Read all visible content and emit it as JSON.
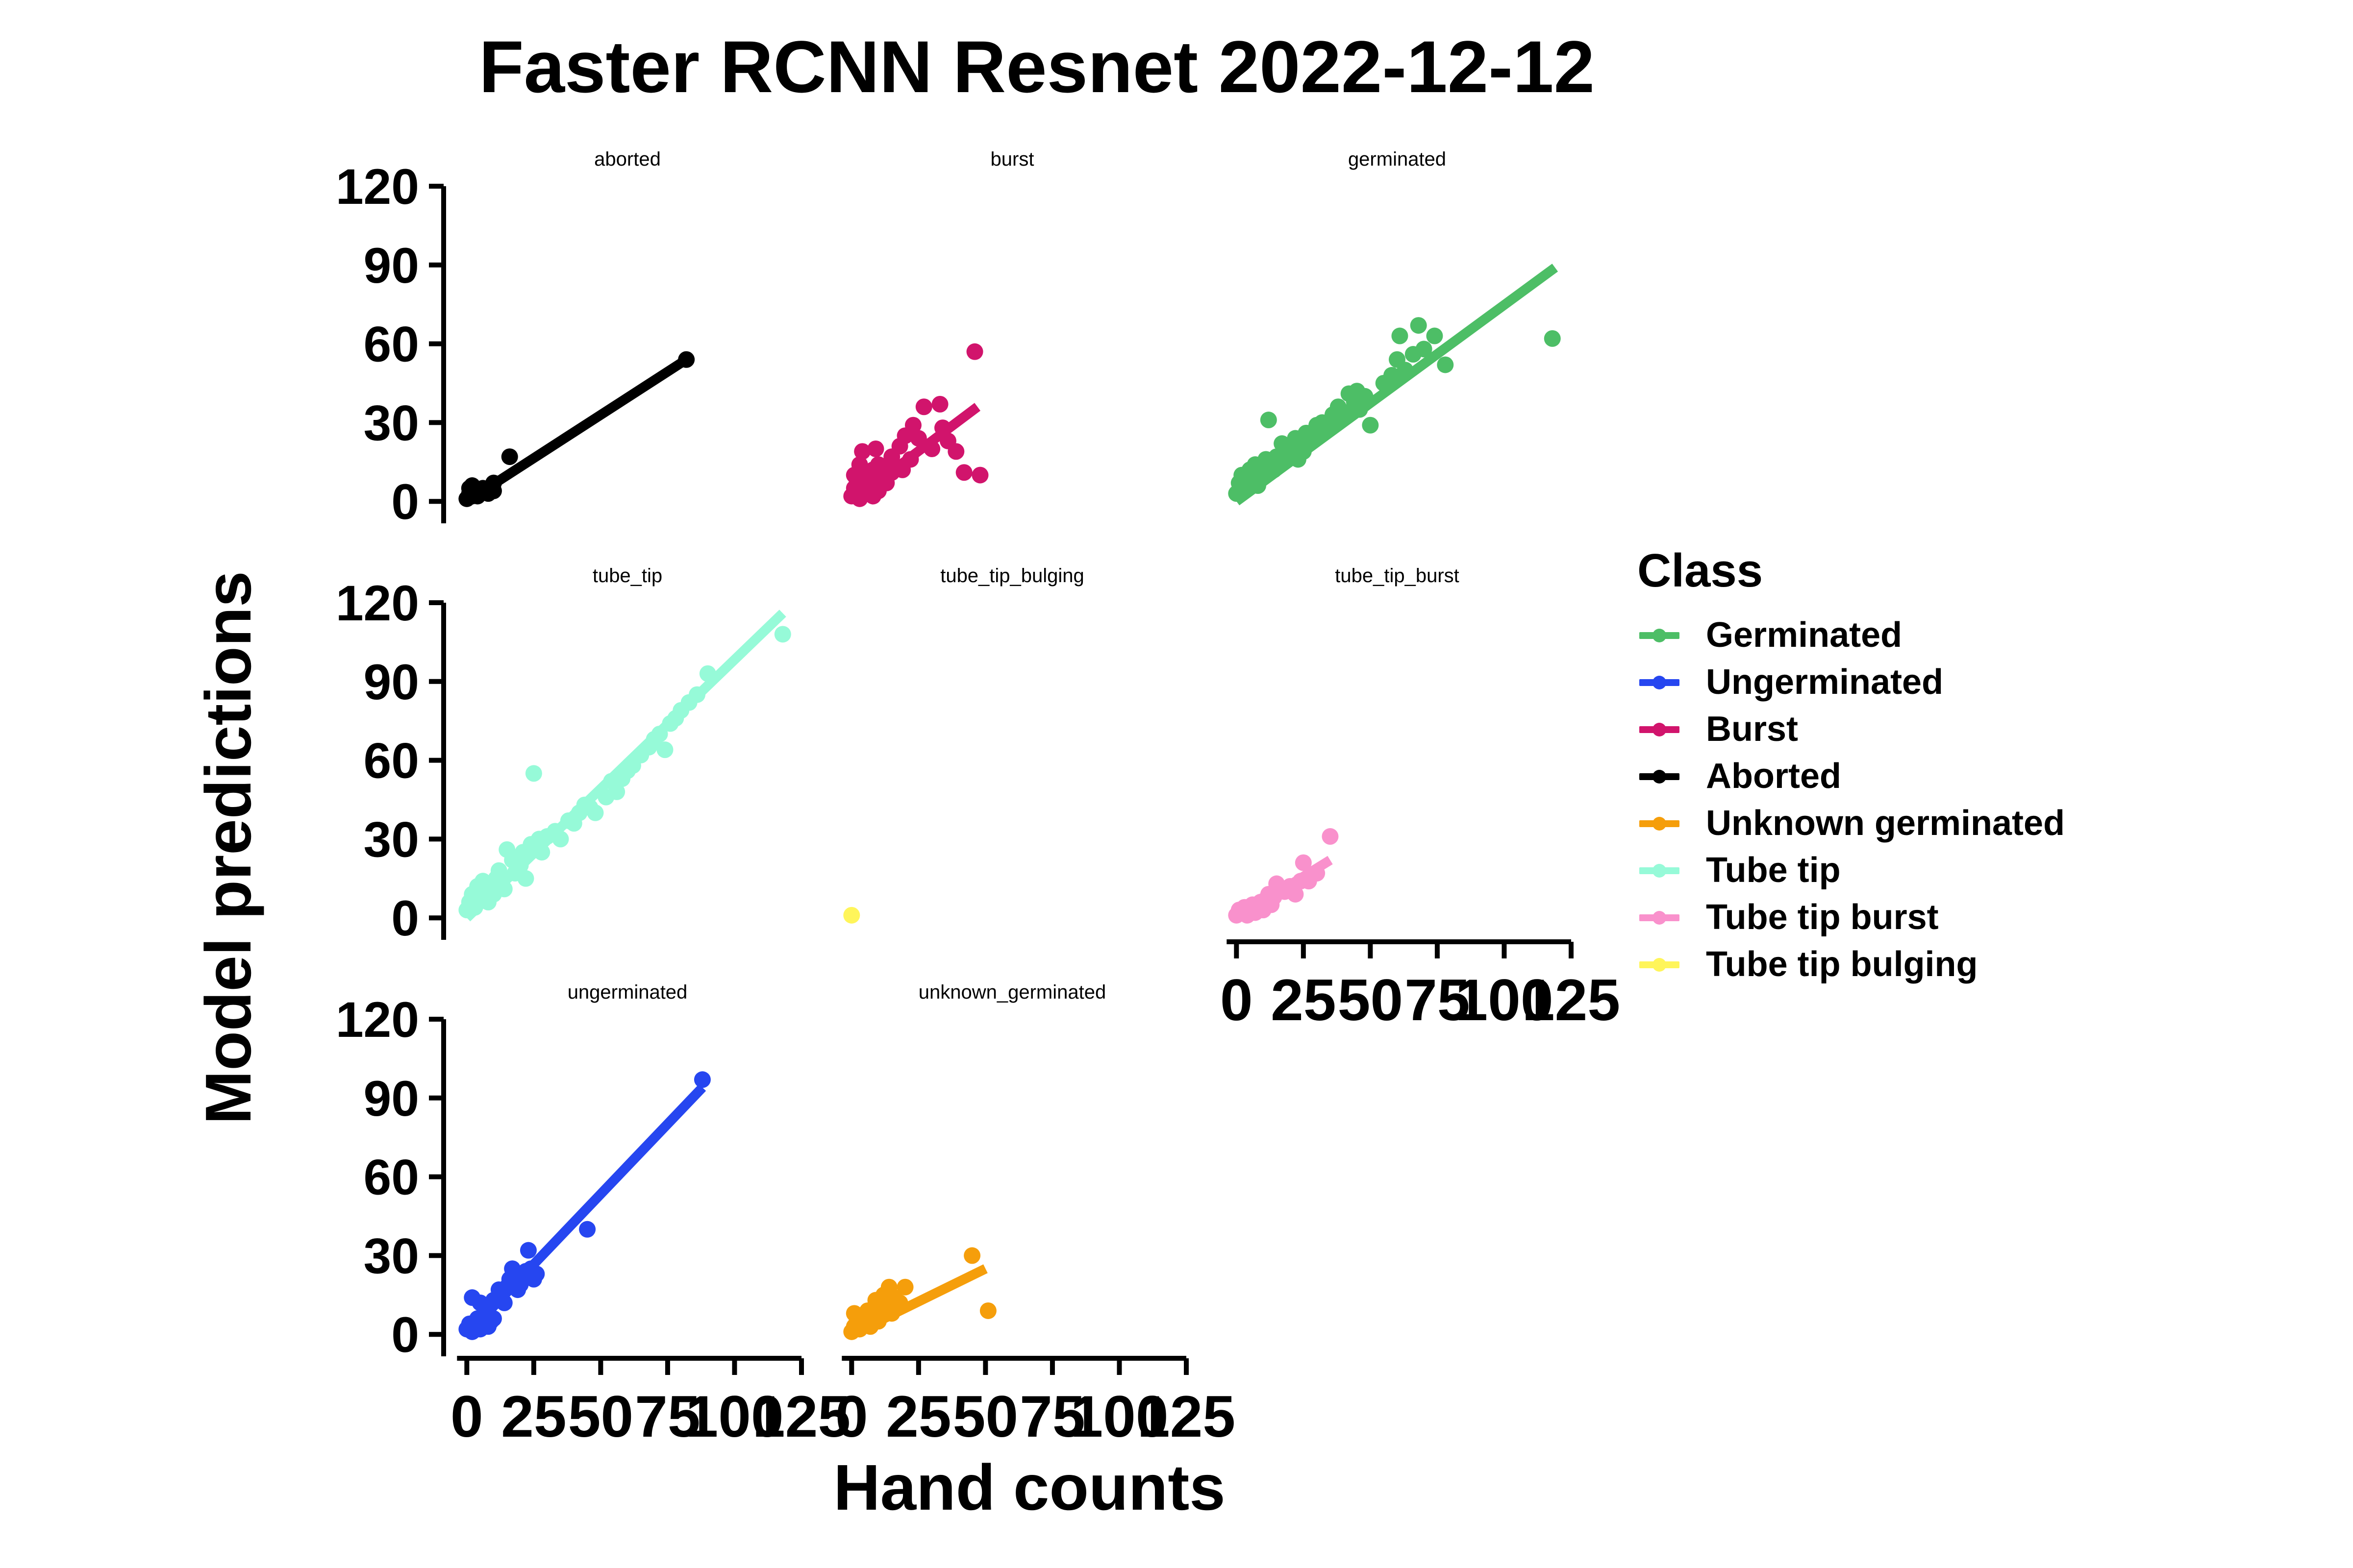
{
  "chart_data": {
    "type": "scatter",
    "title": "Faster RCNN Resnet 2022-12-12",
    "xlabel": "Hand counts",
    "ylabel": "Model predictions",
    "xlim": [
      -5,
      125
    ],
    "ylim": [
      -5,
      120
    ],
    "x_ticks": [
      "0",
      "25",
      "50",
      "75",
      "100",
      "125"
    ],
    "y_ticks": [
      "0",
      "30",
      "60",
      "90",
      "120"
    ],
    "grid": false,
    "legend": {
      "title": "Class",
      "position": "right",
      "items": [
        {
          "label": "Germinated",
          "color": "#4DBE66"
        },
        {
          "label": "Ungerminated",
          "color": "#2646F0"
        },
        {
          "label": "Burst",
          "color": "#D1146C"
        },
        {
          "label": "Aborted",
          "color": "#000000"
        },
        {
          "label": "Unknown germinated",
          "color": "#F59E0B"
        },
        {
          "label": "Tube tip",
          "color": "#96FAD8"
        },
        {
          "label": "Tube tip burst",
          "color": "#F991CC"
        },
        {
          "label": "Tube tip bulging",
          "color": "#FFF55A"
        }
      ]
    },
    "panels": [
      {
        "name": "aborted",
        "color": "#000000",
        "fit": [
          [
            0,
            0
          ],
          [
            82,
            54
          ]
        ],
        "points": [
          [
            0,
            1
          ],
          [
            1,
            3
          ],
          [
            2,
            2
          ],
          [
            1,
            5
          ],
          [
            3,
            4
          ],
          [
            2,
            6
          ],
          [
            4,
            2
          ],
          [
            5,
            3
          ],
          [
            6,
            5
          ],
          [
            8,
            3
          ],
          [
            10,
            4
          ],
          [
            10,
            7
          ],
          [
            16,
            17
          ],
          [
            82,
            54
          ]
        ]
      },
      {
        "name": "burst",
        "color": "#D1146C",
        "fit": [
          [
            0,
            0
          ],
          [
            47,
            36
          ]
        ],
        "points": [
          [
            0,
            2
          ],
          [
            1,
            5
          ],
          [
            1,
            10
          ],
          [
            2,
            8
          ],
          [
            2,
            3
          ],
          [
            3,
            1
          ],
          [
            3,
            14
          ],
          [
            4,
            6
          ],
          [
            4,
            19
          ],
          [
            5,
            3
          ],
          [
            5,
            11
          ],
          [
            6,
            8
          ],
          [
            7,
            6
          ],
          [
            8,
            12
          ],
          [
            8,
            2
          ],
          [
            9,
            20
          ],
          [
            10,
            14
          ],
          [
            10,
            4
          ],
          [
            11,
            10
          ],
          [
            12,
            9
          ],
          [
            13,
            7
          ],
          [
            14,
            14
          ],
          [
            15,
            17
          ],
          [
            15,
            11
          ],
          [
            16,
            13
          ],
          [
            18,
            21
          ],
          [
            19,
            12
          ],
          [
            20,
            25
          ],
          [
            22,
            16
          ],
          [
            23,
            29
          ],
          [
            25,
            24
          ],
          [
            27,
            36
          ],
          [
            30,
            20
          ],
          [
            33,
            37
          ],
          [
            34,
            28
          ],
          [
            36,
            23
          ],
          [
            39,
            19
          ],
          [
            42,
            11
          ],
          [
            46,
            57
          ],
          [
            48,
            10
          ]
        ]
      },
      {
        "name": "germinated",
        "color": "#4DBE66",
        "fit": [
          [
            0,
            0
          ],
          [
            119,
            89
          ]
        ],
        "points": [
          [
            0,
            3
          ],
          [
            1,
            7
          ],
          [
            2,
            10
          ],
          [
            3,
            5
          ],
          [
            4,
            9
          ],
          [
            5,
            12
          ],
          [
            6,
            8
          ],
          [
            7,
            14
          ],
          [
            8,
            6
          ],
          [
            9,
            10
          ],
          [
            10,
            11
          ],
          [
            11,
            16
          ],
          [
            12,
            31
          ],
          [
            13,
            14
          ],
          [
            14,
            12
          ],
          [
            15,
            17
          ],
          [
            17,
            22
          ],
          [
            18,
            17
          ],
          [
            20,
            20
          ],
          [
            22,
            24
          ],
          [
            23,
            16
          ],
          [
            25,
            19
          ],
          [
            26,
            26
          ],
          [
            27,
            22
          ],
          [
            30,
            29
          ],
          [
            31,
            26
          ],
          [
            32,
            30
          ],
          [
            34,
            28
          ],
          [
            36,
            33
          ],
          [
            37,
            30
          ],
          [
            38,
            36
          ],
          [
            40,
            34
          ],
          [
            42,
            41
          ],
          [
            44,
            38
          ],
          [
            45,
            42
          ],
          [
            46,
            35
          ],
          [
            48,
            40
          ],
          [
            50,
            29
          ],
          [
            55,
            45
          ],
          [
            58,
            48
          ],
          [
            60,
            54
          ],
          [
            61,
            63
          ],
          [
            63,
            50
          ],
          [
            66,
            56
          ],
          [
            68,
            67
          ],
          [
            70,
            58
          ],
          [
            74,
            63
          ],
          [
            78,
            52
          ],
          [
            118,
            62
          ]
        ]
      },
      {
        "name": "tube_tip",
        "color": "#96FAD8",
        "fit": [
          [
            0,
            0
          ],
          [
            118,
            116
          ]
        ],
        "points": [
          [
            0,
            3
          ],
          [
            1,
            6
          ],
          [
            2,
            9
          ],
          [
            3,
            4
          ],
          [
            4,
            12
          ],
          [
            5,
            8
          ],
          [
            6,
            14
          ],
          [
            7,
            10
          ],
          [
            8,
            6
          ],
          [
            9,
            12
          ],
          [
            10,
            9
          ],
          [
            11,
            15
          ],
          [
            12,
            18
          ],
          [
            13,
            14
          ],
          [
            14,
            11
          ],
          [
            15,
            26
          ],
          [
            17,
            22
          ],
          [
            18,
            17
          ],
          [
            20,
            20
          ],
          [
            21,
            25
          ],
          [
            22,
            15
          ],
          [
            24,
            28
          ],
          [
            25,
            55
          ],
          [
            27,
            30
          ],
          [
            28,
            25
          ],
          [
            30,
            31
          ],
          [
            33,
            33
          ],
          [
            35,
            30
          ],
          [
            38,
            37
          ],
          [
            40,
            36
          ],
          [
            42,
            40
          ],
          [
            44,
            43
          ],
          [
            46,
            42
          ],
          [
            48,
            40
          ],
          [
            52,
            46
          ],
          [
            54,
            52
          ],
          [
            56,
            48
          ],
          [
            58,
            53
          ],
          [
            60,
            56
          ],
          [
            62,
            58
          ],
          [
            65,
            62
          ],
          [
            68,
            65
          ],
          [
            70,
            68
          ],
          [
            72,
            70
          ],
          [
            74,
            64
          ],
          [
            76,
            74
          ],
          [
            78,
            76
          ],
          [
            80,
            79
          ],
          [
            83,
            82
          ],
          [
            86,
            85
          ],
          [
            90,
            93
          ],
          [
            118,
            108
          ]
        ]
      },
      {
        "name": "tube_tip_bulging",
        "color": "#FFF55A",
        "fit": null,
        "points": [
          [
            0,
            1
          ]
        ]
      },
      {
        "name": "tube_tip_burst",
        "color": "#F991CC",
        "fit": [
          [
            0,
            0
          ],
          [
            35,
            22
          ]
        ],
        "points": [
          [
            0,
            1
          ],
          [
            1,
            3
          ],
          [
            2,
            2
          ],
          [
            3,
            4
          ],
          [
            4,
            1
          ],
          [
            5,
            3
          ],
          [
            6,
            5
          ],
          [
            7,
            2
          ],
          [
            8,
            4
          ],
          [
            9,
            6
          ],
          [
            10,
            3
          ],
          [
            11,
            7
          ],
          [
            12,
            9
          ],
          [
            13,
            5
          ],
          [
            14,
            8
          ],
          [
            15,
            13
          ],
          [
            17,
            11
          ],
          [
            18,
            10
          ],
          [
            20,
            12
          ],
          [
            22,
            9
          ],
          [
            24,
            14
          ],
          [
            25,
            21
          ],
          [
            27,
            14
          ],
          [
            30,
            17
          ],
          [
            35,
            31
          ]
        ]
      },
      {
        "name": "ungerminated",
        "color": "#2646F0",
        "fit": [
          [
            0,
            0
          ],
          [
            88,
            94
          ]
        ],
        "points": [
          [
            0,
            2
          ],
          [
            1,
            4
          ],
          [
            2,
            1
          ],
          [
            2,
            14
          ],
          [
            3,
            3
          ],
          [
            4,
            6
          ],
          [
            5,
            2
          ],
          [
            5,
            12
          ],
          [
            6,
            5
          ],
          [
            7,
            8
          ],
          [
            8,
            3
          ],
          [
            9,
            5
          ],
          [
            10,
            6
          ],
          [
            10,
            13
          ],
          [
            12,
            17
          ],
          [
            13,
            15
          ],
          [
            14,
            12
          ],
          [
            15,
            18
          ],
          [
            16,
            21
          ],
          [
            17,
            25
          ],
          [
            18,
            23
          ],
          [
            19,
            17
          ],
          [
            20,
            19
          ],
          [
            22,
            24
          ],
          [
            23,
            32
          ],
          [
            24,
            25
          ],
          [
            25,
            21
          ],
          [
            26,
            23
          ],
          [
            45,
            40
          ],
          [
            88,
            97
          ]
        ]
      },
      {
        "name": "unknown_germinated",
        "color": "#F59E0B",
        "fit": [
          [
            0,
            0
          ],
          [
            50,
            25
          ]
        ],
        "points": [
          [
            0,
            1
          ],
          [
            1,
            3
          ],
          [
            1,
            8
          ],
          [
            2,
            5
          ],
          [
            3,
            2
          ],
          [
            4,
            6
          ],
          [
            5,
            4
          ],
          [
            6,
            9
          ],
          [
            7,
            3
          ],
          [
            8,
            7
          ],
          [
            9,
            13
          ],
          [
            10,
            5
          ],
          [
            11,
            10
          ],
          [
            12,
            15
          ],
          [
            13,
            11
          ],
          [
            14,
            18
          ],
          [
            15,
            8
          ],
          [
            16,
            14
          ],
          [
            18,
            12
          ],
          [
            20,
            18
          ],
          [
            45,
            30
          ],
          [
            51,
            9
          ]
        ]
      }
    ]
  }
}
